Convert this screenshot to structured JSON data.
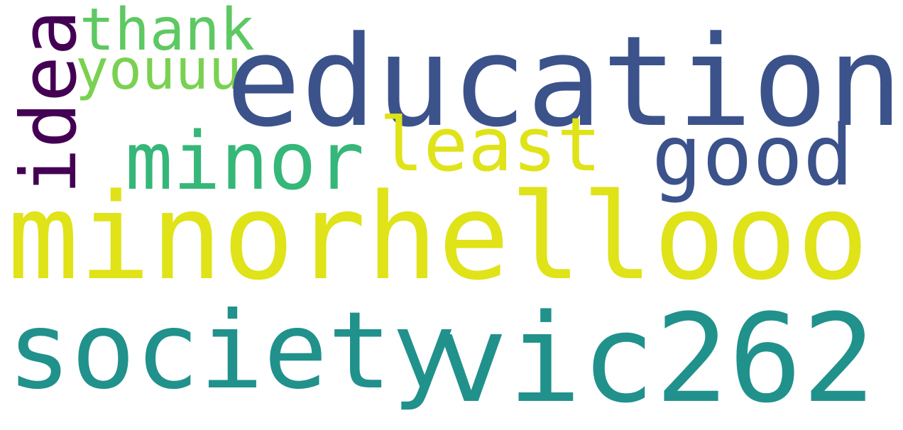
{
  "words": {
    "education": {
      "text": "education",
      "color": "#3b528b"
    },
    "minorhellooo": {
      "text": "minorhellooo",
      "color": "#dfe318"
    },
    "society": {
      "text": "society",
      "color": "#21918c"
    },
    "vic262": {
      "text": "vic262",
      "color": "#21918c"
    },
    "good": {
      "text": "good",
      "color": "#3b528b"
    },
    "minor": {
      "text": "minor",
      "color": "#35b779"
    },
    "least": {
      "text": "least",
      "color": "#dfe318"
    },
    "thank": {
      "text": "thank",
      "color": "#5ec962"
    },
    "youuu": {
      "text": "youuu",
      "color": "#7ad151"
    },
    "idea": {
      "text": "idea",
      "color": "#440154"
    }
  }
}
